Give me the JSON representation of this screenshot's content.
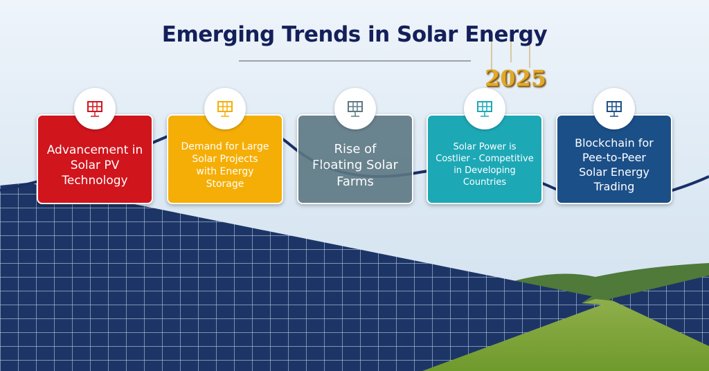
{
  "header": {
    "title": "Emerging Trends in Solar Energy",
    "badge": "2025"
  },
  "cards": [
    {
      "lines": [
        "Advancement in",
        "Solar PV",
        "Technology"
      ],
      "color": "#d0151d"
    },
    {
      "lines": [
        "Demand for Large",
        "Solar Projects",
        "with Energy",
        "Storage"
      ],
      "color": "#f5ae06"
    },
    {
      "lines": [
        "Rise of",
        "Floating Solar",
        "Farms"
      ],
      "color": "#5d7884"
    },
    {
      "lines": [
        "Solar Power is",
        "Costlier - Competitive",
        "in Developing",
        "Countries"
      ],
      "color": "#1da8b6"
    },
    {
      "lines": [
        "Blockchain for",
        "Pee-to-Peer",
        "Solar Energy",
        "Trading"
      ],
      "color": "#1b4f88"
    }
  ]
}
